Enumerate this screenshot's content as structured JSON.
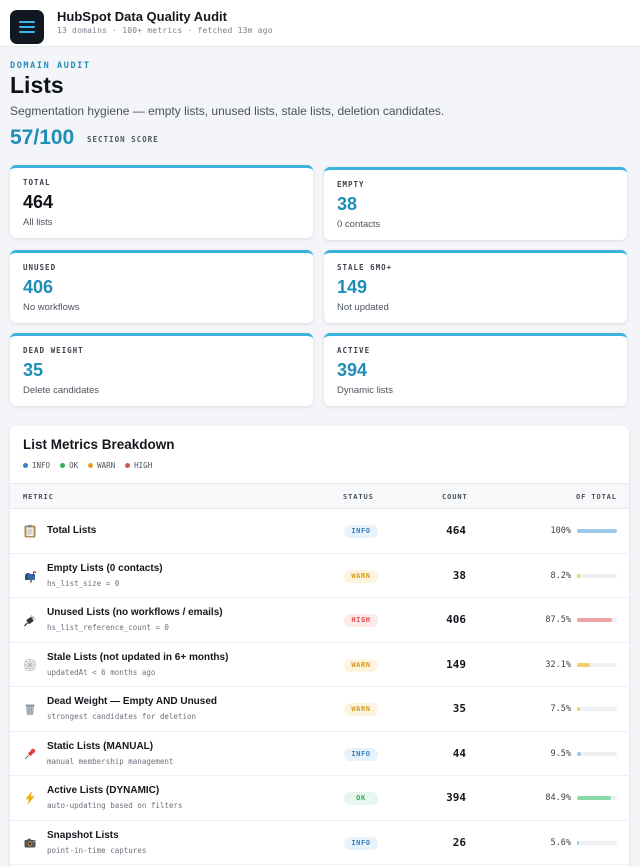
{
  "app": {
    "title": "HubSpot Data Quality Audit",
    "subtitle": "13 domains · 100+ metrics · fetched 13m ago"
  },
  "hero": {
    "eyebrow": "DOMAIN AUDIT",
    "title": "Lists",
    "description": "Segmentation hygiene — empty lists, unused lists, stale lists, deletion candidates.",
    "score": "57/100",
    "score_label": "SECTION SCORE"
  },
  "cards": [
    {
      "label": "TOTAL",
      "value": "464",
      "caption": "All lists",
      "value_color": "#0f1217"
    },
    {
      "label": "EMPTY",
      "value": "38",
      "caption": "0 contacts",
      "value_color": "#1e8db8"
    },
    {
      "label": "UNUSED",
      "value": "406",
      "caption": "No workflows",
      "value_color": "#1e8db8"
    },
    {
      "label": "STALE 6MO+",
      "value": "149",
      "caption": "Not updated",
      "value_color": "#1e8db8"
    },
    {
      "label": "DEAD WEIGHT",
      "value": "35",
      "caption": "Delete candidates",
      "value_color": "#1e8db8"
    },
    {
      "label": "ACTIVE",
      "value": "394",
      "caption": "Dynamic lists",
      "value_color": "#1e8db8"
    }
  ],
  "breakdown": {
    "title": "List Metrics Breakdown",
    "legend": [
      {
        "label": "INFO",
        "color": "#3b82c4"
      },
      {
        "label": "OK",
        "color": "#2fae5c"
      },
      {
        "label": "WARN",
        "color": "#e0a12b"
      },
      {
        "label": "HIGH",
        "color": "#d9534f"
      }
    ],
    "columns": {
      "metric": "METRIC",
      "status": "STATUS",
      "count": "COUNT",
      "share": "OF TOTAL"
    },
    "status_styles": {
      "INFO": {
        "bg": "#e8f2fb",
        "fg": "#3b82c4",
        "bar": "#9cc9e8"
      },
      "OK": {
        "bg": "#e6f6ec",
        "fg": "#2fae5c",
        "bar": "#86dca4"
      },
      "WARN": {
        "bg": "#fdf4e0",
        "fg": "#d39a1d",
        "bar": "#f2d06b"
      },
      "HIGH": {
        "bg": "#fce9e8",
        "fg": "#d9534f",
        "bar": "#f0a2a2"
      }
    },
    "rows": [
      {
        "icon": "clipboard-icon",
        "name": "Total Lists",
        "meta": "",
        "status": "INFO",
        "count": "464",
        "share": 100.0,
        "share_label": "100%"
      },
      {
        "icon": "mailbox-icon",
        "name": "Empty Lists (0 contacts)",
        "meta": "hs_list_size = 0",
        "status": "WARN",
        "count": "38",
        "share": 8.2,
        "share_label": "8.2%"
      },
      {
        "icon": "plug-icon",
        "name": "Unused Lists (no workflows / emails)",
        "meta": "hs_list_reference_count = 0",
        "status": "HIGH",
        "count": "406",
        "share": 87.5,
        "share_label": "87.5%"
      },
      {
        "icon": "cobweb-icon",
        "name": "Stale Lists (not updated in 6+ months)",
        "meta": "updatedAt < 6 months ago",
        "status": "WARN",
        "count": "149",
        "share": 32.1,
        "share_label": "32.1%"
      },
      {
        "icon": "trash-icon",
        "name": "Dead Weight — Empty AND Unused",
        "meta": "strongest candidates for deletion",
        "status": "WARN",
        "count": "35",
        "share": 7.5,
        "share_label": "7.5%"
      },
      {
        "icon": "pushpin-icon",
        "name": "Static Lists (MANUAL)",
        "meta": "manual membership management",
        "status": "INFO",
        "count": "44",
        "share": 9.5,
        "share_label": "9.5%"
      },
      {
        "icon": "lightning-icon",
        "name": "Active Lists (DYNAMIC)",
        "meta": "auto-updating based on filters",
        "status": "OK",
        "count": "394",
        "share": 84.9,
        "share_label": "84.9%"
      },
      {
        "icon": "camera-icon",
        "name": "Snapshot Lists",
        "meta": "point-in-time captures",
        "status": "INFO",
        "count": "26",
        "share": 5.6,
        "share_label": "5.6%"
      }
    ]
  }
}
